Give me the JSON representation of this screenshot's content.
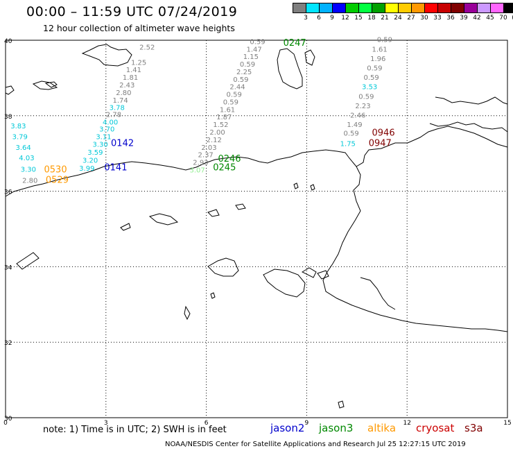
{
  "title": "00:00 – 11:59 UTC 07/24/2019",
  "subtitle": "12 hour collection of altimeter wave heights",
  "scale": {
    "colors": [
      "#7f7f7f",
      "#00e5ff",
      "#00b2ff",
      "#0000ff",
      "#00cc00",
      "#00ff40",
      "#00a000",
      "#ffff00",
      "#ffcc00",
      "#ff9900",
      "#ff0000",
      "#c80000",
      "#800000",
      "#990099",
      "#cc99ff",
      "#ff66ff",
      "#000000"
    ],
    "labels": [
      "3",
      "6",
      "9",
      "12",
      "15",
      "18",
      "21",
      "24",
      "27",
      "30",
      "33",
      "36",
      "39",
      "42",
      "45",
      "70",
      "(ft)"
    ]
  },
  "axes": {
    "x_ticks": [
      "0",
      "3",
      "6",
      "9",
      "12",
      "15"
    ],
    "y_ticks": [
      "40",
      "38",
      "36",
      "34",
      "32",
      "30"
    ]
  },
  "points": [
    {
      "text": "2.52",
      "lon": 4.0,
      "lat": 39.75,
      "c": "#7f7f7f"
    },
    {
      "text": "1.25",
      "lon": 3.75,
      "lat": 39.35,
      "c": "#7f7f7f"
    },
    {
      "text": "1.41",
      "lon": 3.6,
      "lat": 39.15,
      "c": "#7f7f7f"
    },
    {
      "text": "1.81",
      "lon": 3.5,
      "lat": 38.95,
      "c": "#7f7f7f"
    },
    {
      "text": "2.43",
      "lon": 3.4,
      "lat": 38.75,
      "c": "#7f7f7f"
    },
    {
      "text": "2.80",
      "lon": 3.3,
      "lat": 38.55,
      "c": "#7f7f7f"
    },
    {
      "text": "1.74",
      "lon": 3.2,
      "lat": 38.35,
      "c": "#7f7f7f"
    },
    {
      "text": "3.78",
      "lon": 3.1,
      "lat": 38.15,
      "c": "#00c8d8"
    },
    {
      "text": "2.78",
      "lon": 3.0,
      "lat": 37.97,
      "c": "#7f7f7f"
    },
    {
      "text": "4.00",
      "lon": 2.9,
      "lat": 37.77,
      "c": "#00c8d8"
    },
    {
      "text": "3.70",
      "lon": 2.8,
      "lat": 37.58,
      "c": "#00c8d8"
    },
    {
      "text": "3.11",
      "lon": 2.7,
      "lat": 37.38,
      "c": "#00c8d8"
    },
    {
      "text": "3.30",
      "lon": 2.6,
      "lat": 37.18,
      "c": "#00c8d8"
    },
    {
      "text": "3.59",
      "lon": 2.45,
      "lat": 36.97,
      "c": "#00c8d8"
    },
    {
      "text": "3.20",
      "lon": 2.3,
      "lat": 36.76,
      "c": "#00c8d8"
    },
    {
      "text": "3.99",
      "lon": 2.2,
      "lat": 36.54,
      "c": "#00c8d8"
    },
    {
      "text": "0142",
      "lon": 3.15,
      "lat": 37.2,
      "c": "#0000cc",
      "big": true
    },
    {
      "text": "0141",
      "lon": 2.95,
      "lat": 36.55,
      "c": "#0000cc",
      "big": true
    },
    {
      "text": "3.83",
      "lon": 0.15,
      "lat": 37.67,
      "c": "#00c8d8"
    },
    {
      "text": "3.79",
      "lon": 0.2,
      "lat": 37.38,
      "c": "#00c8d8"
    },
    {
      "text": "3.64",
      "lon": 0.3,
      "lat": 37.1,
      "c": "#00c8d8"
    },
    {
      "text": "4.03",
      "lon": 0.4,
      "lat": 36.82,
      "c": "#00c8d8"
    },
    {
      "text": "3.30",
      "lon": 0.45,
      "lat": 36.52,
      "c": "#00c8d8"
    },
    {
      "text": "2.80",
      "lon": 0.5,
      "lat": 36.22,
      "c": "#7f7f7f"
    },
    {
      "text": "0530",
      "lon": 1.15,
      "lat": 36.5,
      "c": "#ff9900",
      "big": true
    },
    {
      "text": "0529",
      "lon": 1.2,
      "lat": 36.22,
      "c": "#ff9900",
      "big": true
    },
    {
      "text": "0.59",
      "lon": 7.3,
      "lat": 39.9,
      "c": "#7f7f7f"
    },
    {
      "text": "1.47",
      "lon": 7.2,
      "lat": 39.7,
      "c": "#7f7f7f"
    },
    {
      "text": "1.15",
      "lon": 7.1,
      "lat": 39.5,
      "c": "#7f7f7f"
    },
    {
      "text": "0.59",
      "lon": 7.0,
      "lat": 39.3,
      "c": "#7f7f7f"
    },
    {
      "text": "2.25",
      "lon": 6.9,
      "lat": 39.1,
      "c": "#7f7f7f"
    },
    {
      "text": "0.59",
      "lon": 6.8,
      "lat": 38.9,
      "c": "#7f7f7f"
    },
    {
      "text": "2.44",
      "lon": 6.7,
      "lat": 38.7,
      "c": "#7f7f7f"
    },
    {
      "text": "0.59",
      "lon": 6.6,
      "lat": 38.5,
      "c": "#7f7f7f"
    },
    {
      "text": "0.59",
      "lon": 6.5,
      "lat": 38.3,
      "c": "#7f7f7f"
    },
    {
      "text": "1.61",
      "lon": 6.4,
      "lat": 38.1,
      "c": "#7f7f7f"
    },
    {
      "text": "1.87",
      "lon": 6.3,
      "lat": 37.9,
      "c": "#7f7f7f"
    },
    {
      "text": "1.52",
      "lon": 6.2,
      "lat": 37.7,
      "c": "#7f7f7f"
    },
    {
      "text": "2.00",
      "lon": 6.1,
      "lat": 37.5,
      "c": "#7f7f7f"
    },
    {
      "text": "2.12",
      "lon": 6.0,
      "lat": 37.3,
      "c": "#7f7f7f"
    },
    {
      "text": "2.03",
      "lon": 5.85,
      "lat": 37.1,
      "c": "#7f7f7f"
    },
    {
      "text": "2.37",
      "lon": 5.75,
      "lat": 36.9,
      "c": "#7f7f7f"
    },
    {
      "text": "2.93",
      "lon": 5.6,
      "lat": 36.7,
      "c": "#7f7f7f"
    },
    {
      "text": "3.07",
      "lon": 5.5,
      "lat": 36.5,
      "c": "#90ee90"
    },
    {
      "text": "0246",
      "lon": 6.35,
      "lat": 36.78,
      "c": "#008800",
      "big": true
    },
    {
      "text": "0245",
      "lon": 6.2,
      "lat": 36.55,
      "c": "#008800",
      "big": true
    },
    {
      "text": "0247",
      "lon": 8.3,
      "lat": 39.85,
      "c": "#008800",
      "big": true
    },
    {
      "text": "0.59",
      "lon": 11.1,
      "lat": 39.95,
      "c": "#7f7f7f"
    },
    {
      "text": "1.61",
      "lon": 10.95,
      "lat": 39.7,
      "c": "#7f7f7f"
    },
    {
      "text": "1.96",
      "lon": 10.9,
      "lat": 39.45,
      "c": "#7f7f7f"
    },
    {
      "text": "0.59",
      "lon": 10.8,
      "lat": 39.2,
      "c": "#7f7f7f"
    },
    {
      "text": "0.59",
      "lon": 10.7,
      "lat": 38.95,
      "c": "#7f7f7f"
    },
    {
      "text": "3.53",
      "lon": 10.65,
      "lat": 38.7,
      "c": "#00c8d8"
    },
    {
      "text": "0.59",
      "lon": 10.55,
      "lat": 38.45,
      "c": "#7f7f7f"
    },
    {
      "text": "2.23",
      "lon": 10.45,
      "lat": 38.2,
      "c": "#7f7f7f"
    },
    {
      "text": "2.46",
      "lon": 10.3,
      "lat": 37.95,
      "c": "#7f7f7f"
    },
    {
      "text": "1.49",
      "lon": 10.2,
      "lat": 37.7,
      "c": "#7f7f7f"
    },
    {
      "text": "0.59",
      "lon": 10.1,
      "lat": 37.47,
      "c": "#7f7f7f"
    },
    {
      "text": "1.75",
      "lon": 10.0,
      "lat": 37.2,
      "c": "#00c8d8"
    },
    {
      "text": "0946",
      "lon": 10.95,
      "lat": 37.47,
      "c": "#800000",
      "big": true
    },
    {
      "text": "0947",
      "lon": 10.85,
      "lat": 37.2,
      "c": "#800000",
      "big": true
    }
  ],
  "note": "note: 1) Time is in UTC; 2) SWH is in feet",
  "legend": [
    {
      "text": "jason2",
      "c": "#0000cc"
    },
    {
      "text": "jason3",
      "c": "#008800"
    },
    {
      "text": "altika",
      "c": "#ff9900"
    },
    {
      "text": "cryosat",
      "c": "#cc0000"
    },
    {
      "text": "s3a",
      "c": "#800000"
    }
  ],
  "credit": "NOAA/NESDIS Center for Satellite Applications and Research   Jul 25 12:27:15 UTC 2019"
}
